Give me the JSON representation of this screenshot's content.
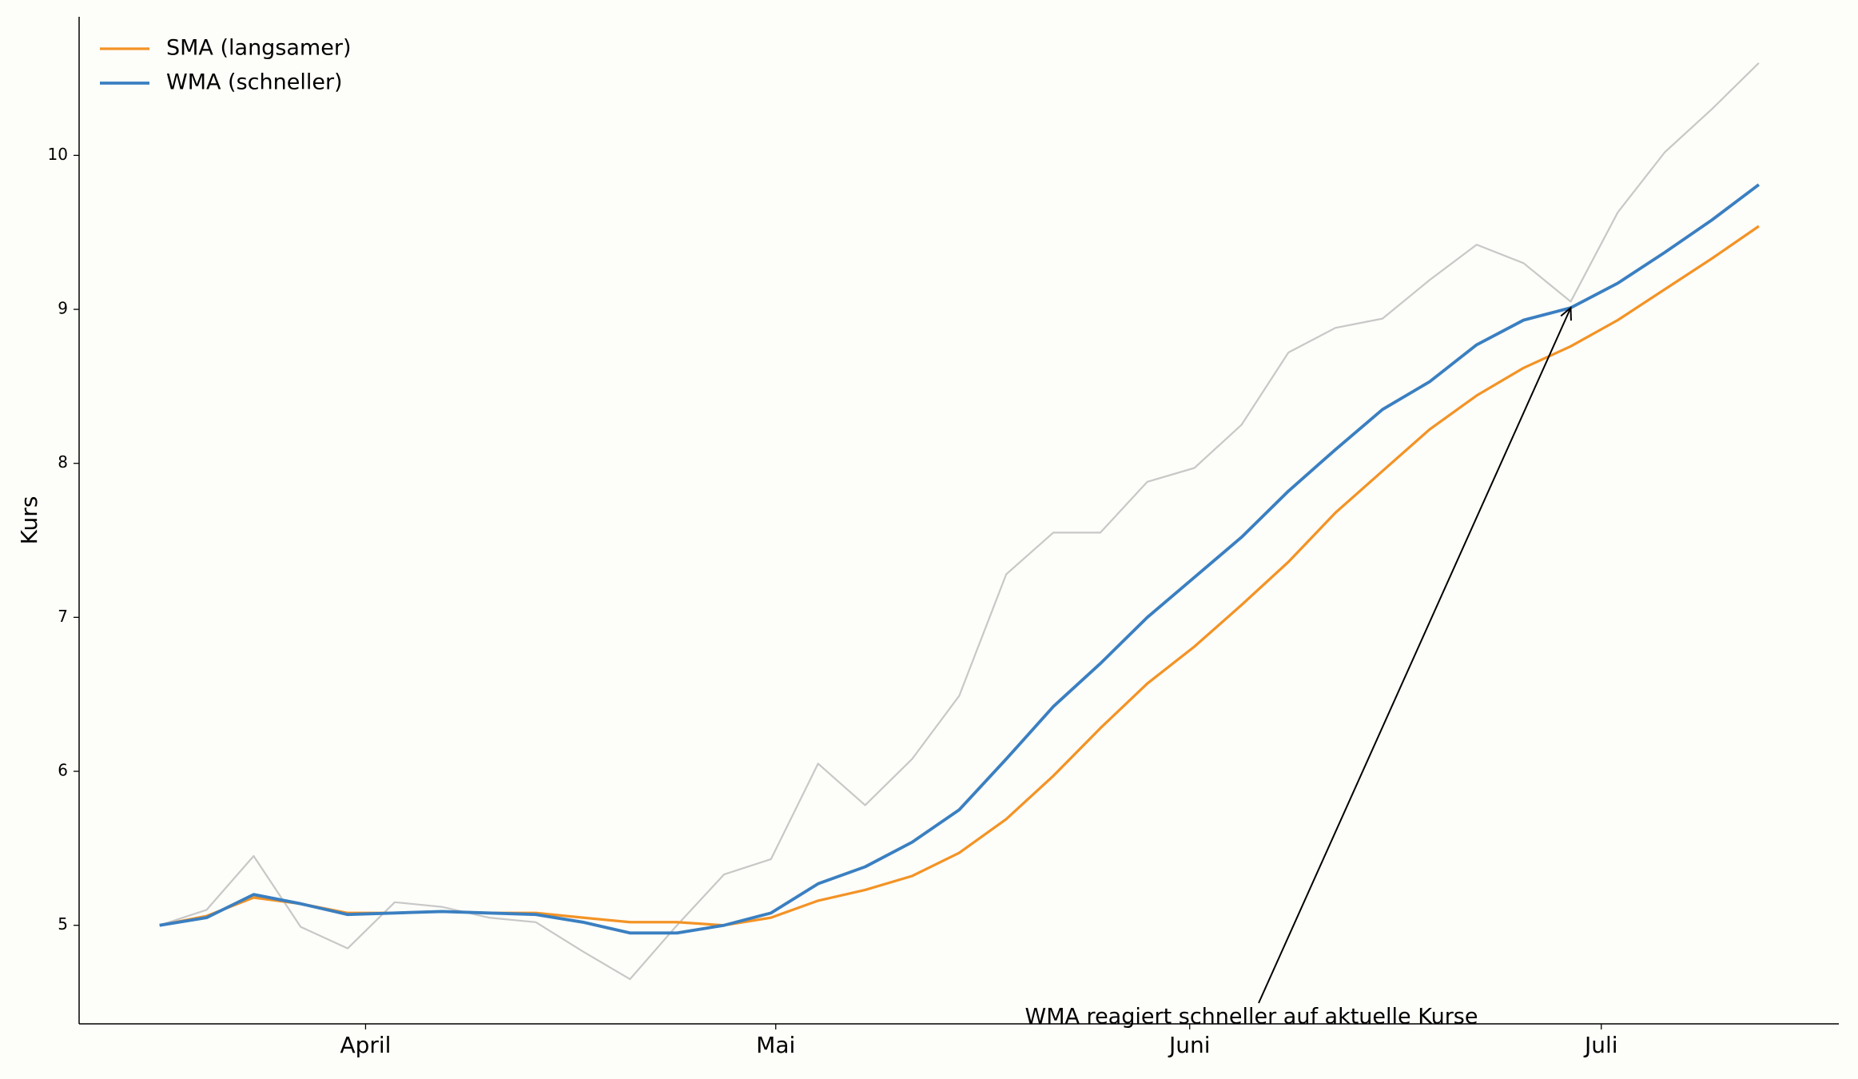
{
  "chart_data": {
    "type": "line",
    "x": [
      0,
      1,
      2,
      3,
      4,
      5,
      6,
      7,
      8,
      9,
      10,
      11,
      12,
      13,
      14,
      15,
      16,
      17,
      18,
      19,
      20,
      21,
      22,
      23,
      24,
      25,
      26,
      27,
      28,
      29,
      30,
      31,
      32,
      33,
      34
    ],
    "series": [
      {
        "color": "#c8c8c8",
        "width": 1.5,
        "values": [
          5.0,
          5.1,
          5.45,
          4.99,
          4.85,
          5.15,
          5.12,
          5.05,
          5.02,
          4.83,
          4.65,
          5.0,
          5.33,
          5.43,
          6.05,
          5.78,
          6.08,
          6.49,
          7.28,
          7.55,
          7.55,
          7.88,
          7.97,
          8.25,
          8.72,
          8.88,
          8.94,
          9.19,
          9.42,
          9.3,
          9.05,
          9.63,
          10.02,
          10.3,
          10.6
        ]
      },
      {
        "name": "SMA (langsamer)",
        "color": "#f39325",
        "width": 2.2,
        "values": [
          5.0,
          5.06,
          5.18,
          5.14,
          5.08,
          5.08,
          5.09,
          5.08,
          5.08,
          5.05,
          5.02,
          5.02,
          5.0,
          5.05,
          5.16,
          5.23,
          5.32,
          5.47,
          5.69,
          5.97,
          6.28,
          6.57,
          6.81,
          7.08,
          7.36,
          7.68,
          7.95,
          8.22,
          8.44,
          8.62,
          8.76,
          8.93,
          9.13,
          9.33,
          9.54
        ]
      },
      {
        "name": "WMA (schneller)",
        "color": "#3a7fc1",
        "width": 2.6,
        "values": [
          5.0,
          5.05,
          5.2,
          5.14,
          5.07,
          5.08,
          5.09,
          5.08,
          5.07,
          5.02,
          4.95,
          4.95,
          5.0,
          5.08,
          5.27,
          5.38,
          5.54,
          5.75,
          6.08,
          6.42,
          6.7,
          7.0,
          7.26,
          7.52,
          7.82,
          8.09,
          8.35,
          8.53,
          8.77,
          8.93,
          9.01,
          9.17,
          9.37,
          9.58,
          9.81
        ]
      }
    ],
    "xlim": [
      -1.71,
      35.7
    ],
    "xticks": [
      {
        "value": 4.38,
        "label": "April"
      },
      {
        "value": 13.1,
        "label": "Mai"
      },
      {
        "value": 21.9,
        "label": "Juni"
      },
      {
        "value": 30.65,
        "label": "Juli"
      }
    ],
    "ylim": [
      4.36,
      10.9
    ],
    "yticks": [
      5,
      6,
      7,
      8,
      9,
      10
    ],
    "ylabel": "Kurs",
    "legend": "upper left",
    "annotation": {
      "text": "WMA reagiert schneller auf aktuelle Kurse",
      "x": 30,
      "y": 9.01
    }
  }
}
